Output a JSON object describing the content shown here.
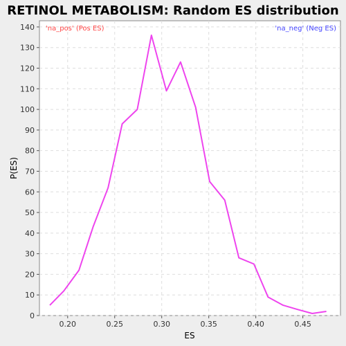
{
  "chart_data": {
    "type": "line",
    "title": "RETINOL METABOLISM: Random ES distribution",
    "xlabel": "ES",
    "ylabel": "P(ES)",
    "xlim": [
      0.17,
      0.49
    ],
    "ylim": [
      0,
      143
    ],
    "x_ticks": [
      0.2,
      0.25,
      0.3,
      0.35,
      0.4,
      0.45
    ],
    "x_tick_labels": [
      "0.20",
      "0.25",
      "0.30",
      "0.35",
      "0.40",
      "0.45"
    ],
    "y_ticks": [
      0,
      10,
      20,
      30,
      40,
      50,
      60,
      70,
      80,
      90,
      100,
      110,
      120,
      130,
      140
    ],
    "y_tick_labels": [
      "0",
      "10",
      "20",
      "30",
      "40",
      "50",
      "60",
      "70",
      "80",
      "90",
      "100",
      "110",
      "120",
      "130",
      "140"
    ],
    "grid": true,
    "annotations": {
      "pos": "'na_pos' (Pos ES)",
      "neg": "'na_neg' (Neg ES)"
    },
    "series": [
      {
        "color": "#ee44ee",
        "x": [
          0.181,
          0.196,
          0.212,
          0.227,
          0.243,
          0.258,
          0.274,
          0.289,
          0.305,
          0.32,
          0.336,
          0.351,
          0.367,
          0.382,
          0.398,
          0.413,
          0.429,
          0.444,
          0.46,
          0.475
        ],
        "y": [
          5,
          12,
          22,
          43,
          62,
          93,
          100,
          136,
          109,
          123,
          101,
          65,
          56,
          28,
          25,
          9,
          5,
          3,
          1,
          2
        ]
      }
    ]
  }
}
